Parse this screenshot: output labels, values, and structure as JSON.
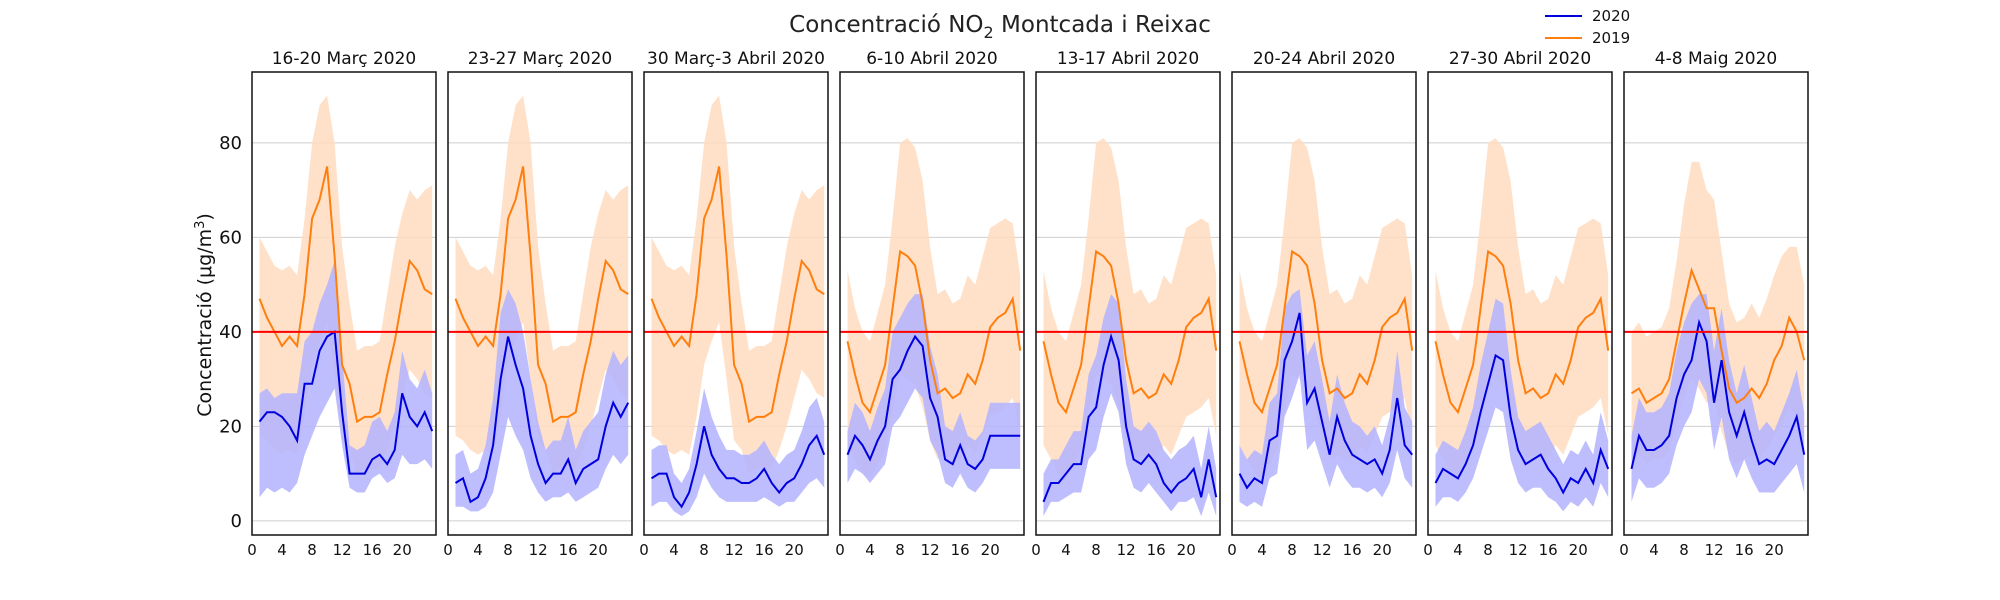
{
  "chart_data": {
    "type": "line",
    "title": "Concentració NO",
    "title_subscript": "2",
    "title_suffix": " Montcada i Reixac",
    "ylabel_prefix": "Concentració (μg/m",
    "ylabel_superscript": "3",
    "ylabel_suffix": ")",
    "ylim": [
      -3,
      95
    ],
    "yticks": [
      0,
      20,
      40,
      60,
      80
    ],
    "xlim": [
      0,
      24.5
    ],
    "xticks": [
      0,
      4,
      8,
      12,
      16,
      20
    ],
    "threshold": 40,
    "grid": "horizontal",
    "legend_position": "top-right",
    "colors": {
      "s2020": "#0000dd",
      "s2019": "#ff7f0e",
      "band2020": "#b3b3ff",
      "band2019": "#ffdcbf",
      "threshold": "#ff0000"
    },
    "legend": [
      "2020",
      "2019"
    ],
    "x": [
      1,
      2,
      3,
      4,
      5,
      6,
      7,
      8,
      9,
      10,
      11,
      12,
      13,
      14,
      15,
      16,
      17,
      18,
      19,
      20,
      21,
      22,
      23,
      24
    ],
    "panels": [
      {
        "title": "16-20 Març 2020",
        "s2020": [
          21,
          23,
          23,
          22,
          20,
          17,
          29,
          29,
          36,
          39,
          40,
          23,
          10,
          10,
          10,
          13,
          14,
          12,
          15,
          27,
          22,
          20,
          23,
          19
        ],
        "s2020_low": [
          5,
          7,
          6,
          7,
          6,
          8,
          14,
          18,
          22,
          25,
          28,
          16,
          7,
          6,
          6,
          9,
          10,
          8,
          9,
          14,
          12,
          12,
          13,
          11
        ],
        "s2020_high": [
          27,
          28,
          26,
          27,
          27,
          27,
          38,
          40,
          46,
          50,
          55,
          35,
          16,
          15,
          16,
          21,
          22,
          19,
          23,
          36,
          30,
          28,
          32,
          27
        ],
        "s2019": [
          47,
          43,
          40,
          37,
          39,
          37,
          48,
          64,
          68,
          75,
          56,
          33,
          29,
          21,
          22,
          22,
          23,
          31,
          38,
          47,
          55,
          53,
          49,
          48
        ],
        "s2019_low": [
          18,
          17,
          15,
          14,
          15,
          14,
          22,
          33,
          38,
          42,
          30,
          17,
          15,
          10,
          11,
          11,
          11,
          15,
          20,
          26,
          32,
          30,
          27,
          26
        ],
        "s2019_high": [
          60,
          57,
          54,
          53,
          54,
          52,
          64,
          80,
          88,
          90,
          80,
          58,
          46,
          36,
          37,
          37,
          38,
          48,
          58,
          65,
          70,
          68,
          70,
          71
        ]
      },
      {
        "title": "23-27 Març 2020",
        "s2020": [
          8,
          9,
          4,
          5,
          9,
          16,
          30,
          39,
          33,
          28,
          18,
          12,
          8,
          10,
          10,
          13,
          8,
          11,
          12,
          13,
          20,
          25,
          22,
          25
        ],
        "s2020_low": [
          3,
          3,
          2,
          2,
          3,
          6,
          14,
          22,
          18,
          15,
          9,
          6,
          4,
          5,
          5,
          6,
          4,
          5,
          6,
          7,
          11,
          14,
          12,
          14
        ],
        "s2020_high": [
          14,
          15,
          10,
          11,
          16,
          26,
          44,
          49,
          46,
          40,
          30,
          21,
          15,
          17,
          17,
          22,
          15,
          19,
          21,
          23,
          31,
          36,
          33,
          35
        ],
        "s2019": [
          47,
          43,
          40,
          37,
          39,
          37,
          48,
          64,
          68,
          75,
          56,
          33,
          29,
          21,
          22,
          22,
          23,
          31,
          38,
          47,
          55,
          53,
          49,
          48
        ],
        "s2019_low": [
          18,
          17,
          15,
          14,
          15,
          14,
          22,
          33,
          38,
          42,
          30,
          17,
          15,
          10,
          11,
          11,
          11,
          15,
          20,
          26,
          32,
          30,
          27,
          26
        ],
        "s2019_high": [
          60,
          57,
          54,
          53,
          54,
          52,
          64,
          80,
          88,
          90,
          80,
          58,
          46,
          36,
          37,
          37,
          38,
          48,
          58,
          65,
          70,
          68,
          70,
          71
        ]
      },
      {
        "title": "30 Març-3 Abril 2020",
        "s2020": [
          9,
          10,
          10,
          5,
          3,
          6,
          12,
          20,
          14,
          11,
          9,
          9,
          8,
          8,
          9,
          11,
          8,
          6,
          8,
          9,
          12,
          16,
          18,
          14
        ],
        "s2020_low": [
          3,
          4,
          4,
          2,
          1,
          2,
          5,
          10,
          7,
          5,
          4,
          4,
          4,
          4,
          4,
          5,
          4,
          3,
          4,
          4,
          6,
          8,
          9,
          7
        ],
        "s2020_high": [
          15,
          16,
          16,
          10,
          8,
          11,
          19,
          28,
          22,
          18,
          15,
          15,
          14,
          14,
          15,
          17,
          14,
          12,
          14,
          15,
          19,
          24,
          26,
          21
        ],
        "s2019": [
          47,
          43,
          40,
          37,
          39,
          37,
          48,
          64,
          68,
          75,
          56,
          33,
          29,
          21,
          22,
          22,
          23,
          31,
          38,
          47,
          55,
          53,
          49,
          48
        ],
        "s2019_low": [
          18,
          17,
          15,
          14,
          15,
          14,
          22,
          33,
          38,
          42,
          30,
          17,
          15,
          10,
          11,
          11,
          11,
          15,
          20,
          26,
          32,
          30,
          27,
          26
        ],
        "s2019_high": [
          60,
          57,
          54,
          53,
          54,
          52,
          64,
          80,
          88,
          90,
          80,
          58,
          46,
          36,
          37,
          37,
          38,
          48,
          58,
          65,
          70,
          68,
          70,
          71
        ]
      },
      {
        "title": "6-10 Abril 2020",
        "s2020": [
          14,
          18,
          16,
          13,
          17,
          20,
          30,
          32,
          36,
          39,
          37,
          26,
          22,
          13,
          12,
          16,
          12,
          11,
          13,
          18,
          18,
          18,
          18,
          18
        ],
        "s2020_low": [
          8,
          11,
          10,
          8,
          10,
          12,
          20,
          22,
          25,
          28,
          26,
          17,
          14,
          8,
          7,
          10,
          7,
          6,
          8,
          11,
          11,
          11,
          11,
          11
        ],
        "s2020_high": [
          19,
          25,
          23,
          19,
          24,
          28,
          40,
          43,
          46,
          48,
          48,
          37,
          31,
          20,
          19,
          23,
          18,
          17,
          19,
          25,
          25,
          25,
          25,
          25
        ],
        "s2019": [
          38,
          31,
          25,
          23,
          28,
          33,
          45,
          57,
          56,
          54,
          46,
          34,
          27,
          28,
          26,
          27,
          31,
          29,
          34,
          41,
          43,
          44,
          47,
          36
        ],
        "s2019_low": [
          16,
          13,
          10,
          9,
          12,
          15,
          23,
          31,
          30,
          29,
          24,
          17,
          13,
          14,
          13,
          13,
          16,
          14,
          18,
          22,
          23,
          24,
          26,
          18
        ],
        "s2019_high": [
          53,
          45,
          40,
          38,
          44,
          50,
          64,
          80,
          81,
          79,
          72,
          58,
          48,
          49,
          46,
          47,
          52,
          50,
          56,
          62,
          63,
          64,
          63,
          52
        ]
      },
      {
        "title": "13-17 Abril 2020",
        "s2020": [
          4,
          8,
          8,
          10,
          12,
          12,
          22,
          24,
          33,
          39,
          34,
          20,
          13,
          12,
          14,
          12,
          8,
          6,
          8,
          9,
          11,
          5,
          13,
          5
        ],
        "s2020_low": [
          1,
          4,
          4,
          5,
          6,
          6,
          13,
          15,
          22,
          27,
          23,
          12,
          7,
          6,
          8,
          6,
          4,
          2,
          4,
          4,
          5,
          1,
          6,
          1
        ],
        "s2020_high": [
          10,
          13,
          13,
          16,
          19,
          19,
          31,
          35,
          43,
          48,
          46,
          30,
          20,
          19,
          21,
          19,
          15,
          13,
          15,
          16,
          18,
          11,
          20,
          11
        ],
        "s2019": [
          38,
          31,
          25,
          23,
          28,
          33,
          45,
          57,
          56,
          54,
          46,
          34,
          27,
          28,
          26,
          27,
          31,
          29,
          34,
          41,
          43,
          44,
          47,
          36
        ],
        "s2019_low": [
          16,
          13,
          10,
          9,
          12,
          15,
          23,
          31,
          30,
          29,
          24,
          17,
          13,
          14,
          13,
          13,
          16,
          14,
          18,
          22,
          23,
          24,
          26,
          18
        ],
        "s2019_high": [
          53,
          45,
          40,
          38,
          44,
          50,
          64,
          80,
          81,
          79,
          72,
          58,
          48,
          49,
          46,
          47,
          52,
          50,
          56,
          62,
          63,
          64,
          63,
          52
        ]
      },
      {
        "title": "20-24 Abril 2020",
        "s2020": [
          10,
          7,
          9,
          8,
          17,
          18,
          34,
          38,
          44,
          25,
          28,
          21,
          14,
          22,
          17,
          14,
          13,
          12,
          13,
          10,
          15,
          26,
          16,
          14
        ],
        "s2020_low": [
          4,
          3,
          4,
          3,
          9,
          10,
          22,
          26,
          31,
          15,
          17,
          12,
          7,
          12,
          9,
          7,
          7,
          6,
          7,
          5,
          8,
          15,
          9,
          7
        ],
        "s2020_high": [
          16,
          13,
          15,
          14,
          25,
          27,
          45,
          48,
          49,
          35,
          38,
          30,
          21,
          31,
          25,
          21,
          20,
          18,
          20,
          16,
          22,
          36,
          24,
          21
        ],
        "s2019": [
          38,
          31,
          25,
          23,
          28,
          33,
          45,
          57,
          56,
          54,
          46,
          34,
          27,
          28,
          26,
          27,
          31,
          29,
          34,
          41,
          43,
          44,
          47,
          36
        ],
        "s2019_low": [
          16,
          13,
          10,
          9,
          12,
          15,
          23,
          31,
          30,
          29,
          24,
          17,
          13,
          14,
          13,
          13,
          16,
          14,
          18,
          22,
          23,
          24,
          26,
          18
        ],
        "s2019_high": [
          53,
          45,
          40,
          38,
          44,
          50,
          64,
          80,
          81,
          79,
          72,
          58,
          48,
          49,
          46,
          47,
          52,
          50,
          56,
          62,
          63,
          64,
          63,
          52
        ]
      },
      {
        "title": "27-30 Abril 2020",
        "s2020": [
          8,
          11,
          10,
          9,
          12,
          16,
          23,
          29,
          35,
          34,
          22,
          15,
          12,
          13,
          14,
          11,
          9,
          6,
          9,
          8,
          11,
          8,
          15,
          11
        ],
        "s2020_low": [
          3,
          5,
          5,
          4,
          6,
          9,
          14,
          19,
          24,
          23,
          13,
          8,
          6,
          7,
          7,
          5,
          4,
          2,
          4,
          3,
          5,
          3,
          8,
          5
        ],
        "s2020_high": [
          14,
          17,
          16,
          15,
          19,
          24,
          33,
          40,
          47,
          46,
          32,
          22,
          19,
          20,
          21,
          18,
          15,
          12,
          15,
          14,
          17,
          14,
          23,
          17
        ],
        "s2019": [
          38,
          31,
          25,
          23,
          28,
          33,
          45,
          57,
          56,
          54,
          46,
          34,
          27,
          28,
          26,
          27,
          31,
          29,
          34,
          41,
          43,
          44,
          47,
          36
        ],
        "s2019_low": [
          16,
          13,
          10,
          9,
          12,
          15,
          23,
          31,
          30,
          29,
          24,
          17,
          13,
          14,
          13,
          13,
          16,
          14,
          18,
          22,
          23,
          24,
          26,
          18
        ],
        "s2019_high": [
          53,
          45,
          40,
          38,
          44,
          50,
          64,
          80,
          81,
          79,
          72,
          58,
          48,
          49,
          46,
          47,
          52,
          50,
          56,
          62,
          63,
          64,
          63,
          52
        ]
      },
      {
        "title": "4-8 Maig 2020",
        "s2020": [
          11,
          18,
          15,
          15,
          16,
          18,
          26,
          31,
          34,
          42,
          38,
          25,
          34,
          23,
          18,
          23,
          17,
          12,
          13,
          12,
          15,
          18,
          22,
          14
        ],
        "s2020_low": [
          4,
          9,
          7,
          7,
          8,
          10,
          16,
          20,
          23,
          30,
          27,
          15,
          22,
          13,
          9,
          13,
          9,
          6,
          6,
          6,
          8,
          10,
          12,
          6
        ],
        "s2020_high": [
          18,
          26,
          23,
          23,
          24,
          27,
          36,
          42,
          46,
          48,
          48,
          36,
          45,
          34,
          27,
          33,
          26,
          19,
          21,
          19,
          23,
          27,
          32,
          23
        ],
        "s2019": [
          27,
          28,
          25,
          26,
          27,
          30,
          38,
          46,
          53,
          49,
          45,
          45,
          36,
          28,
          25,
          26,
          28,
          26,
          29,
          34,
          37,
          43,
          40,
          34
        ],
        "s2019_low": [
          13,
          14,
          12,
          13,
          13,
          15,
          20,
          26,
          30,
          28,
          25,
          25,
          19,
          14,
          12,
          13,
          14,
          13,
          15,
          18,
          20,
          24,
          22,
          17
        ],
        "s2019_high": [
          40,
          42,
          39,
          40,
          41,
          45,
          55,
          67,
          76,
          76,
          70,
          68,
          57,
          46,
          42,
          43,
          46,
          43,
          47,
          52,
          56,
          58,
          58,
          50
        ]
      }
    ]
  }
}
